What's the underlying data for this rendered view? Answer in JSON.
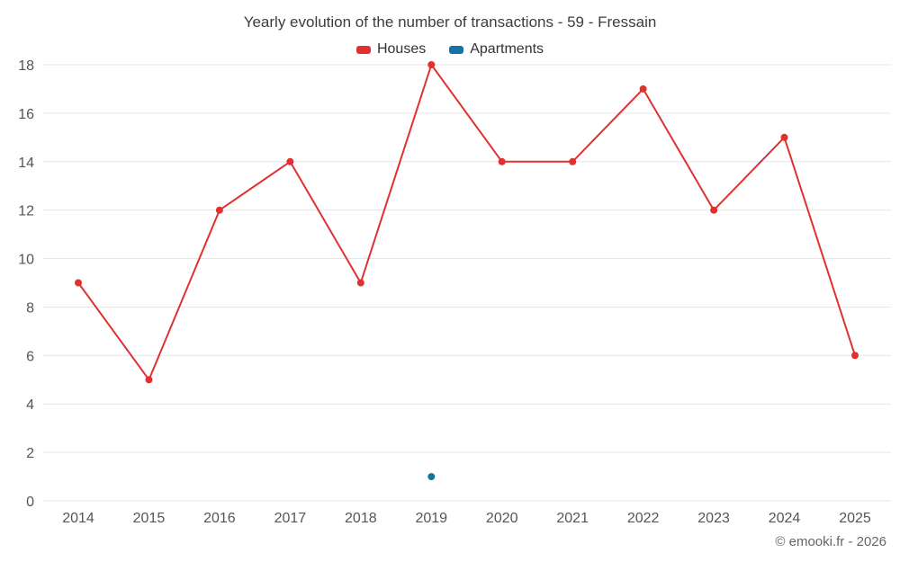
{
  "title": "Yearly evolution of the number of transactions - 59 - Fressain",
  "copyright": "© emooki.fr - 2026",
  "legend": [
    {
      "label": "Houses",
      "color": "#e03131"
    },
    {
      "label": "Apartments",
      "color": "#1474a3"
    }
  ],
  "colors": {
    "houses": "#e03131",
    "apartments": "#1474a3",
    "gridline": "#e6e6e6",
    "axis_text": "#555555"
  },
  "chart_data": {
    "type": "line",
    "title": "Yearly evolution of the number of transactions - 59 - Fressain",
    "categories": [
      "2014",
      "2015",
      "2016",
      "2017",
      "2018",
      "2019",
      "2020",
      "2021",
      "2022",
      "2023",
      "2024",
      "2025"
    ],
    "series": [
      {
        "name": "Houses",
        "color": "#e03131",
        "values": [
          9,
          5,
          12,
          14,
          9,
          18,
          14,
          14,
          17,
          12,
          15,
          6
        ]
      },
      {
        "name": "Apartments",
        "color": "#1474a3",
        "values": [
          null,
          null,
          null,
          null,
          null,
          1,
          null,
          null,
          null,
          null,
          null,
          null
        ]
      }
    ],
    "xlabel": "",
    "ylabel": "",
    "ylim": [
      0,
      18
    ],
    "yticks": [
      0,
      2,
      4,
      6,
      8,
      10,
      12,
      14,
      16,
      18
    ],
    "grid": true,
    "legend_position": "top"
  }
}
